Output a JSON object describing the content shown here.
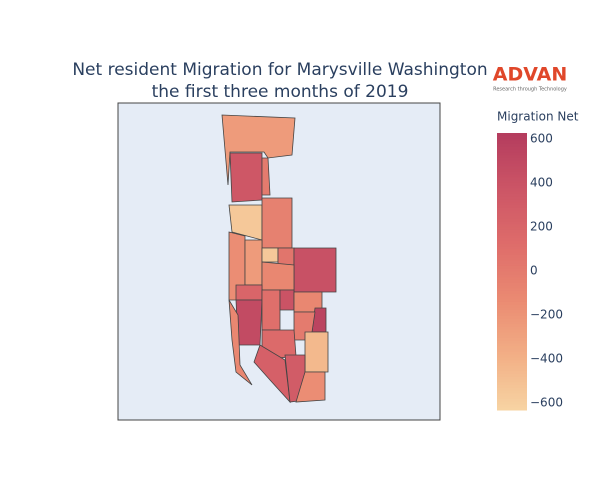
{
  "chart_data": {
    "type": "choropleth",
    "title": "Net resident Migration for Marysville Washington",
    "subtitle": "the first three months of 2019",
    "colorbar_title": "Migration Net",
    "zlim": [
      -632,
      627
    ],
    "zticks": [
      600,
      400,
      200,
      0,
      {
        "value": -200,
        "label": "−200"
      },
      {
        "value": -400,
        "label": "−400"
      },
      {
        "value": -600,
        "label": "−600"
      }
    ],
    "colorscale": [
      "#f7d4a3",
      "#f2ae85",
      "#ea8a72",
      "#de6c6a",
      "#cc5566",
      "#b43c5e"
    ],
    "values": [
      -250,
      350,
      0,
      -550,
      -50,
      -150,
      -250,
      -550,
      50,
      420,
      -100,
      200,
      480,
      100,
      400,
      -100,
      550,
      0,
      -450,
      -100,
      150,
      250,
      300,
      -150
    ]
  },
  "logo": {
    "name": "ADVAN",
    "tagline": "Research through Technology"
  }
}
